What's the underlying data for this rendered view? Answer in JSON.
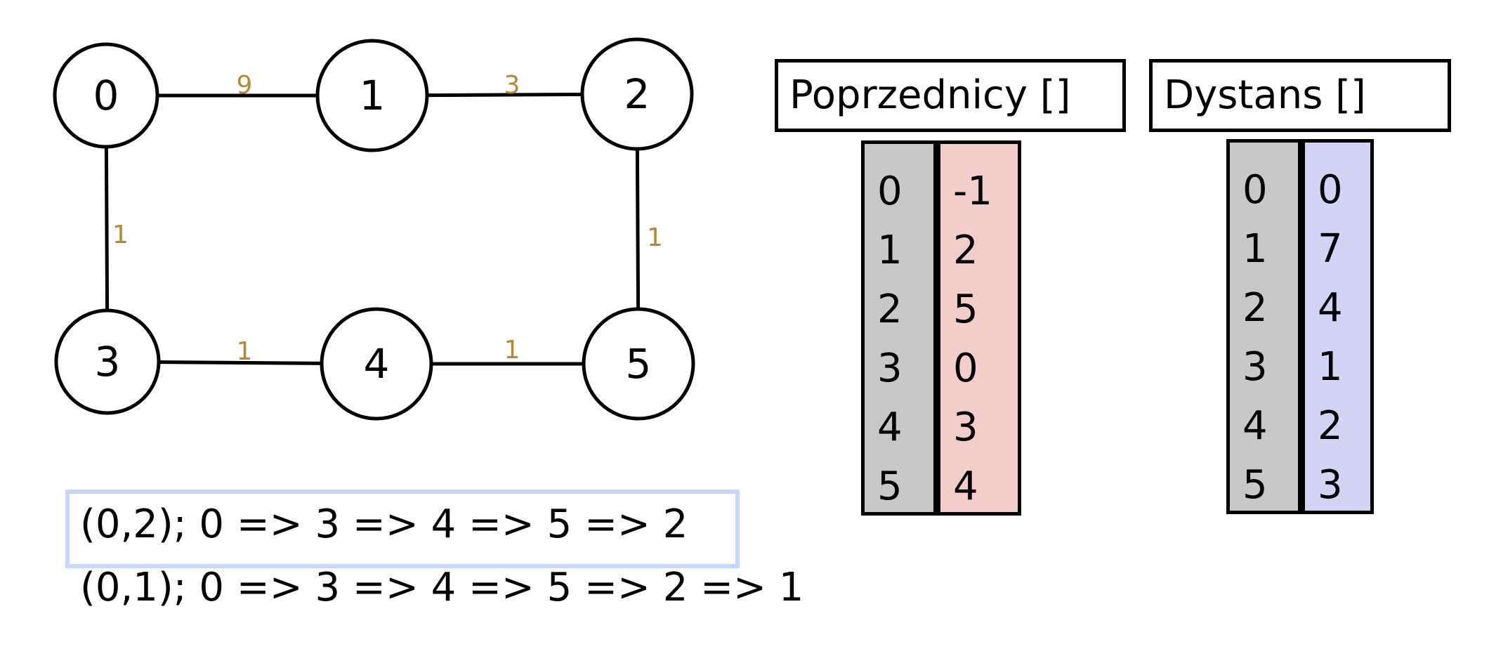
{
  "graph": {
    "nodes": [
      "0",
      "1",
      "2",
      "3",
      "4",
      "5"
    ],
    "edges": [
      {
        "from": "0",
        "to": "1",
        "weight": "9"
      },
      {
        "from": "1",
        "to": "2",
        "weight": "3"
      },
      {
        "from": "0",
        "to": "3",
        "weight": "1"
      },
      {
        "from": "2",
        "to": "5",
        "weight": "1"
      },
      {
        "from": "3",
        "to": "4",
        "weight": "1"
      },
      {
        "from": "4",
        "to": "5",
        "weight": "1"
      }
    ],
    "colors": {
      "edge": "#000000",
      "weight": "#b08a3a",
      "node_fill": "#ffffff",
      "node_stroke": "#000000"
    }
  },
  "poprzednicy": {
    "title": "Poprzednicy []",
    "indices": [
      "0",
      "1",
      "2",
      "3",
      "4",
      "5"
    ],
    "values": [
      "-1",
      "2",
      "5",
      "0",
      "3",
      "4"
    ],
    "index_color": "#c8c8c8",
    "value_color": "#f3cdc9"
  },
  "dystans": {
    "title": "Dystans []",
    "indices": [
      "0",
      "1",
      "2",
      "3",
      "4",
      "5"
    ],
    "values": [
      "0",
      "7",
      "4",
      "1",
      "2",
      "3"
    ],
    "index_color": "#c8c8c8",
    "value_color": "#d2d3f5"
  },
  "paths": {
    "highlighted_index": 0,
    "highlight_color": "#c5d8fb",
    "lines": [
      "(0,2); 0 => 3 => 4 => 5 => 2",
      "(0,1); 0 => 3 => 4 => 5 => 2 => 1"
    ]
  }
}
